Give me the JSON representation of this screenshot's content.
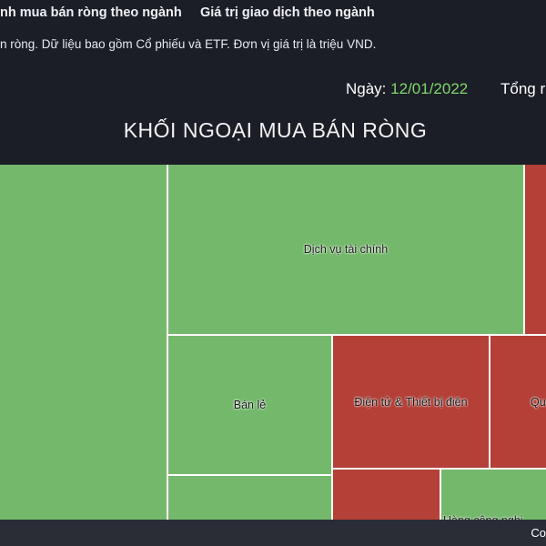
{
  "tabs": [
    {
      "label": "nh mua bán ròng theo ngành"
    },
    {
      "label": "Giá trị giao dịch theo ngành"
    }
  ],
  "description": "n ròng. Dữ liệu bao gồm Cổ phiếu và ETF. Đơn vị giá trị là triệu VND.",
  "date": {
    "label": "Ngày:",
    "value": "12/01/2022"
  },
  "total": {
    "label": "Tổng r"
  },
  "chart_title": "KHỐI NGOẠI MUA BÁN RÒNG",
  "colors": {
    "positive": "#74b86c",
    "negative": "#b44037",
    "date_value": "#7fd86b"
  },
  "treemap": [
    {
      "name": "",
      "sign": "positive"
    },
    {
      "name": "Dịch vụ tài chính",
      "sign": "positive"
    },
    {
      "name": "",
      "sign": "negative"
    },
    {
      "name": "Bán lẻ",
      "sign": "positive"
    },
    {
      "name": "Điện tử & Thiết bị điện",
      "sign": "negative"
    },
    {
      "name": "Qu",
      "sign": "negative"
    },
    {
      "name": "",
      "sign": "positive"
    },
    {
      "name": "",
      "sign": "negative"
    },
    {
      "name": "Hàng công nghi",
      "sign": "positive"
    }
  ],
  "bottom_bar": {
    "text": "Co"
  }
}
